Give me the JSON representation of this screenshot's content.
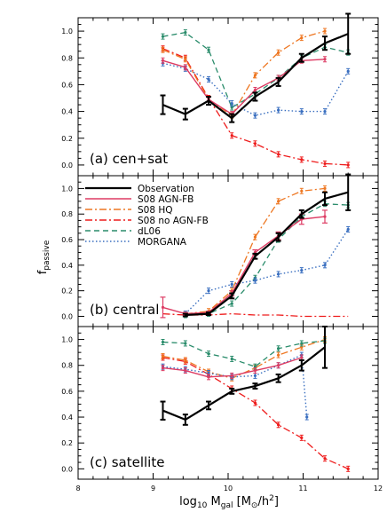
{
  "figure": {
    "xlabel": "log10 M_gal [M_⊙/h²]",
    "xlabel_parts": {
      "log": "log",
      "log_sub": "10",
      "m": " M",
      "m_sub": "gal",
      "unit_open": " [M",
      "unit_sun": "⊙",
      "unit_h": "/h",
      "unit_exp": "2",
      "unit_close": "]"
    },
    "ylabel": "f_passive",
    "ylabel_parts": {
      "f": "f",
      "sub": "passive"
    }
  },
  "legend": [
    {
      "label": "Observation",
      "color": "#000000",
      "style": "solid-thick"
    },
    {
      "label": "S08 AGN-FB",
      "color": "#dd3b63",
      "style": "solid"
    },
    {
      "label": "S08 HQ",
      "color": "#ee7722",
      "style": "dashdot"
    },
    {
      "label": "S08 no AGN-FB",
      "color": "#ee1c1c",
      "style": "dashdot"
    },
    {
      "label": "dL06",
      "color": "#2a8c6b",
      "style": "dashed"
    },
    {
      "label": "MORGANA",
      "color": "#3a6fc0",
      "style": "dotted"
    }
  ],
  "chart_data": [
    {
      "type": "line",
      "panel_label": "(a) cen+sat",
      "xlim": [
        8,
        12
      ],
      "ylim": [
        -0.08,
        1.1
      ],
      "xticks": [
        "8",
        "9",
        "10",
        "11",
        "12"
      ],
      "yticks": [
        "0.0",
        "0.2",
        "0.4",
        "0.6",
        "0.8",
        "1.0"
      ],
      "series": [
        {
          "name": "S08 no AGN-FB",
          "color": "#ee1c1c",
          "dash": "8,3,2,3",
          "width": 1.3,
          "marker": true,
          "x": [
            9.13,
            9.43,
            9.74,
            10.05,
            10.36,
            10.67,
            10.98,
            11.29,
            11.6
          ],
          "y": [
            0.87,
            0.8,
            0.5,
            0.22,
            0.16,
            0.08,
            0.04,
            0.01,
            0.0
          ]
        },
        {
          "name": "S08 HQ",
          "color": "#ee7722",
          "dash": "8,3,2,3",
          "width": 1.3,
          "marker": true,
          "x": [
            9.13,
            9.43,
            9.74,
            10.05,
            10.36,
            10.67,
            10.98,
            11.29
          ],
          "y": [
            0.86,
            0.79,
            0.49,
            0.37,
            0.67,
            0.84,
            0.95,
            1.0
          ]
        },
        {
          "name": "dL06",
          "color": "#2a8c6b",
          "dash": "6,4",
          "width": 1.3,
          "marker": true,
          "x": [
            9.13,
            9.43,
            9.74,
            10.05,
            10.36,
            10.67,
            10.98,
            11.29,
            11.6
          ],
          "y": [
            0.96,
            0.99,
            0.86,
            0.43,
            0.53,
            0.65,
            0.8,
            0.88,
            0.84
          ]
        },
        {
          "name": "MORGANA",
          "color": "#3a6fc0",
          "dash": "1.5,2.5",
          "width": 1.4,
          "marker": true,
          "x": [
            9.13,
            9.43,
            9.74,
            10.05,
            10.36,
            10.67,
            10.98,
            11.29,
            11.6
          ],
          "y": [
            0.76,
            0.72,
            0.64,
            0.46,
            0.37,
            0.41,
            0.4,
            0.4,
            0.7
          ]
        },
        {
          "name": "S08 AGN-FB",
          "color": "#dd3b63",
          "dash": "",
          "width": 1.4,
          "marker": true,
          "x": [
            9.13,
            9.43,
            9.74,
            10.05,
            10.36,
            10.67,
            10.98,
            11.29
          ],
          "y": [
            0.78,
            0.73,
            0.49,
            0.38,
            0.56,
            0.65,
            0.78,
            0.79
          ]
        },
        {
          "name": "Observation",
          "color": "#000000",
          "dash": "",
          "width": 2.2,
          "marker": false,
          "x": [
            9.13,
            9.43,
            9.74,
            10.05,
            10.36,
            10.67,
            10.98,
            11.29,
            11.6
          ],
          "y": [
            0.45,
            0.38,
            0.48,
            0.35,
            0.51,
            0.62,
            0.8,
            0.91,
            0.98
          ],
          "err": [
            0.07,
            0.04,
            0.03,
            0.03,
            0.03,
            0.03,
            0.03,
            0.05,
            0.15
          ]
        }
      ]
    },
    {
      "type": "line",
      "panel_label": "(b) central",
      "xlim": [
        8,
        12
      ],
      "ylim": [
        -0.08,
        1.1
      ],
      "xticks": [
        "8",
        "9",
        "10",
        "11",
        "12"
      ],
      "yticks": [
        "0.0",
        "0.2",
        "0.4",
        "0.6",
        "0.8",
        "1.0"
      ],
      "series": [
        {
          "name": "S08 no AGN-FB",
          "color": "#ee1c1c",
          "dash": "8,3,2,3",
          "width": 1.3,
          "marker": false,
          "x": [
            9.13,
            9.43,
            9.74,
            10.05,
            10.36,
            10.67,
            10.98,
            11.29,
            11.6
          ],
          "y": [
            0.02,
            0.01,
            0.01,
            0.02,
            0.01,
            0.01,
            0.0,
            0.0,
            0.0
          ]
        },
        {
          "name": "S08 HQ",
          "color": "#ee7722",
          "dash": "8,3,2,3",
          "width": 1.3,
          "marker": true,
          "x": [
            9.43,
            9.74,
            10.05,
            10.36,
            10.67,
            10.98,
            11.29
          ],
          "y": [
            0.02,
            0.04,
            0.2,
            0.62,
            0.9,
            0.98,
            1.0
          ]
        },
        {
          "name": "dL06",
          "color": "#2a8c6b",
          "dash": "6,4",
          "width": 1.3,
          "marker": true,
          "x": [
            9.43,
            9.74,
            10.05,
            10.36,
            10.67,
            10.98,
            11.29,
            11.6
          ],
          "y": [
            0.01,
            0.02,
            0.1,
            0.3,
            0.6,
            0.78,
            0.88,
            0.87
          ]
        },
        {
          "name": "MORGANA",
          "color": "#3a6fc0",
          "dash": "1.5,2.5",
          "width": 1.4,
          "marker": true,
          "x": [
            9.43,
            9.74,
            10.05,
            10.36,
            10.67,
            10.98,
            11.29,
            11.6
          ],
          "y": [
            0.02,
            0.2,
            0.25,
            0.28,
            0.33,
            0.36,
            0.4,
            0.68
          ]
        },
        {
          "name": "S08 AGN-FB",
          "color": "#dd3b63",
          "dash": "",
          "width": 1.4,
          "marker": true,
          "x": [
            9.13,
            9.43,
            9.74,
            10.05,
            10.36,
            10.67,
            10.98,
            11.29
          ],
          "y": [
            0.07,
            0.02,
            0.03,
            0.18,
            0.5,
            0.63,
            0.76,
            0.78
          ],
          "err": [
            0.08,
            0.01,
            0.01,
            0.02,
            0.02,
            0.03,
            0.04,
            0.05
          ]
        },
        {
          "name": "Observation",
          "color": "#000000",
          "dash": "",
          "width": 2.2,
          "marker": false,
          "x": [
            9.43,
            9.74,
            10.05,
            10.36,
            10.67,
            10.98,
            11.29,
            11.6
          ],
          "y": [
            0.01,
            0.02,
            0.16,
            0.47,
            0.62,
            0.8,
            0.92,
            0.97
          ],
          "err": [
            0.01,
            0.01,
            0.02,
            0.02,
            0.03,
            0.03,
            0.05,
            0.14
          ]
        }
      ]
    },
    {
      "type": "line",
      "panel_label": "(c) satellite",
      "xlim": [
        8,
        12
      ],
      "ylim": [
        -0.08,
        1.1
      ],
      "xticks": [
        "8",
        "9",
        "10",
        "11",
        "12"
      ],
      "yticks": [
        "0.0",
        "0.2",
        "0.4",
        "0.6",
        "0.8",
        "1.0"
      ],
      "series": [
        {
          "name": "S08 no AGN-FB",
          "color": "#ee1c1c",
          "dash": "8,3,2,3",
          "width": 1.3,
          "marker": true,
          "x": [
            9.13,
            9.43,
            9.74,
            10.05,
            10.36,
            10.67,
            10.98,
            11.29,
            11.6
          ],
          "y": [
            0.86,
            0.83,
            0.73,
            0.62,
            0.51,
            0.34,
            0.24,
            0.08,
            0.0
          ]
        },
        {
          "name": "S08 HQ",
          "color": "#ee7722",
          "dash": "8,3,2,3",
          "width": 1.3,
          "marker": true,
          "x": [
            9.13,
            9.43,
            9.74,
            10.05,
            10.36,
            10.67,
            10.98,
            11.29
          ],
          "y": [
            0.87,
            0.84,
            0.75,
            0.7,
            0.78,
            0.88,
            0.94,
            1.0
          ]
        },
        {
          "name": "dL06",
          "color": "#2a8c6b",
          "dash": "6,4",
          "width": 1.3,
          "marker": true,
          "x": [
            9.13,
            9.43,
            9.74,
            10.05,
            10.36,
            10.67,
            10.98,
            11.29
          ],
          "y": [
            0.98,
            0.97,
            0.89,
            0.85,
            0.79,
            0.93,
            0.97,
            0.99
          ]
        },
        {
          "name": "MORGANA",
          "color": "#3a6fc0",
          "dash": "1.5,2.5",
          "width": 1.4,
          "marker": true,
          "x": [
            9.13,
            9.43,
            9.74,
            10.05,
            10.36,
            10.67,
            10.98,
            11.05
          ],
          "y": [
            0.79,
            0.77,
            0.74,
            0.71,
            0.72,
            0.8,
            0.88,
            0.4
          ]
        },
        {
          "name": "S08 AGN-FB",
          "color": "#dd3b63",
          "dash": "",
          "width": 1.4,
          "marker": true,
          "x": [
            9.13,
            9.43,
            9.74,
            10.05,
            10.36,
            10.67,
            10.98
          ],
          "y": [
            0.78,
            0.76,
            0.71,
            0.72,
            0.76,
            0.8,
            0.86
          ]
        },
        {
          "name": "Observation",
          "color": "#000000",
          "dash": "",
          "width": 2.2,
          "marker": false,
          "x": [
            9.13,
            9.43,
            9.74,
            10.05,
            10.36,
            10.67,
            10.98,
            11.29
          ],
          "y": [
            0.45,
            0.38,
            0.49,
            0.6,
            0.64,
            0.7,
            0.8,
            0.94
          ],
          "err": [
            0.07,
            0.04,
            0.03,
            0.02,
            0.02,
            0.03,
            0.04,
            0.16
          ]
        }
      ]
    }
  ]
}
